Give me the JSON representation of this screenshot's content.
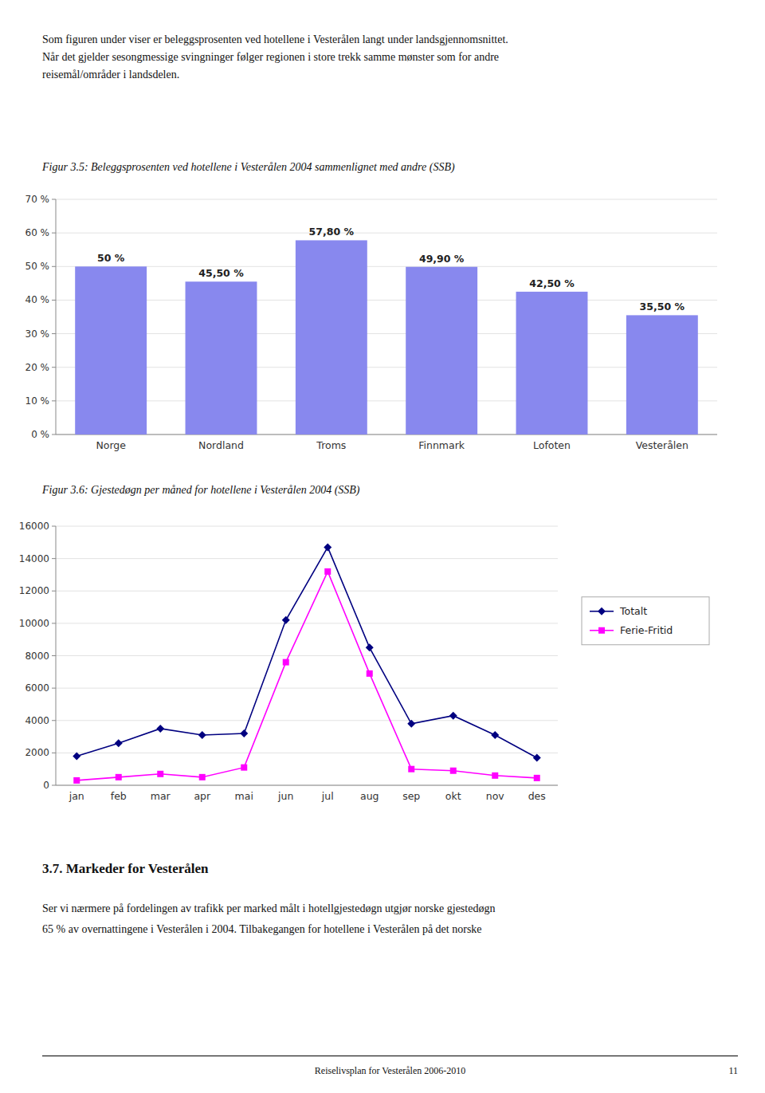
{
  "page_text_top": [
    "Som figuren under viser er beleggsprosenten ved hotellene i Vesterålen langt  under landsgjennomsnittet.",
    "Når det gjelder sesongmessige svingninger følger regionen i store trekk samme mønster som for andre",
    "reisemål/områder i landsdelen."
  ],
  "bottom_text_title": "3.7. Markeder for Vesterålen",
  "bottom_text_body": [
    "Ser vi nærmere på fordelingen av trafikk per marked målt i hotellgjestedøgn utgjør norske gjestedøgn",
    "65 % av overnattingene i Vesterålen i 2004. Tilbakegangen for hotellene i Vesterålen på det norske"
  ],
  "page_footer": "Reiselivsplan for Vesterålen 2006-2010",
  "page_number": "11",
  "chart_data": [
    {
      "type": "bar",
      "title": "Figur 3.5: Beleggsprosenten ved hotellene i Vesterålen 2004 sammenlignet med andre (SSB)",
      "categories": [
        "Norge",
        "Nordland",
        "Troms",
        "Finnmark",
        "Lofoten",
        "Vesterålen"
      ],
      "values": [
        50.0,
        45.5,
        57.8,
        49.9,
        42.5,
        35.5
      ],
      "value_labels": [
        "50 %",
        "45,50 %",
        "57,80 %",
        "49,90 %",
        "42,50 %",
        "35,50 %"
      ],
      "data_labels": true,
      "color": "#8888EE",
      "ylim": [
        0,
        70
      ],
      "yticks": [
        {
          "value": 0,
          "label": "0 %"
        },
        {
          "value": 10,
          "label": "10 %"
        },
        {
          "value": 20,
          "label": "20 %"
        },
        {
          "value": 30,
          "label": "30 %"
        },
        {
          "value": 40,
          "label": "40 %"
        },
        {
          "value": 50,
          "label": "50 %"
        },
        {
          "value": 60,
          "label": "60 %"
        },
        {
          "value": 70,
          "label": "70 %"
        }
      ],
      "grid": true
    },
    {
      "type": "line",
      "title": "Figur 3.6: Gjestedøgn per måned for hotellene i Vesterålen 2004 (SSB)",
      "categories": [
        "jan",
        "feb",
        "mar",
        "apr",
        "mai",
        "jun",
        "jul",
        "aug",
        "sep",
        "okt",
        "nov",
        "des"
      ],
      "series": [
        {
          "name": "Totalt",
          "color": "#000080",
          "marker": "diamond",
          "values": [
            1800,
            2600,
            3500,
            3100,
            3200,
            10200,
            14700,
            8500,
            3800,
            4300,
            3100,
            1700
          ]
        },
        {
          "name": "Ferie-Fritid",
          "color": "#FF00FF",
          "marker": "square",
          "values": [
            300,
            500,
            700,
            500,
            1100,
            7600,
            13200,
            6900,
            1000,
            900,
            600,
            450
          ]
        }
      ],
      "ylim": [
        0,
        16000
      ],
      "yticks": [
        0,
        2000,
        4000,
        6000,
        8000,
        10000,
        12000,
        14000,
        16000
      ],
      "grid": true,
      "legend": "right"
    }
  ]
}
